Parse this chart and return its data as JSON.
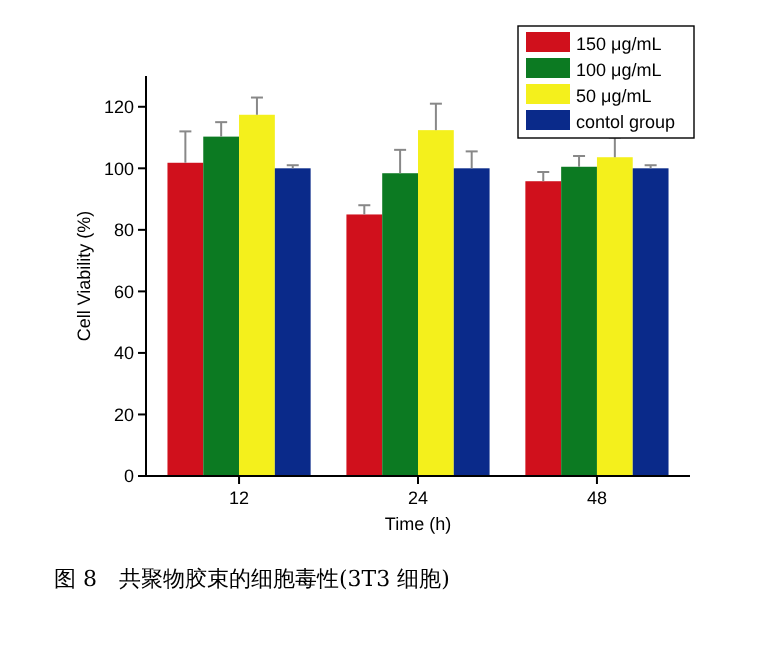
{
  "chart_data": {
    "type": "bar",
    "title": "图 8　共聚物胶束的细胞毒性(3T3 细胞)",
    "xlabel": "Time (h)",
    "ylabel": "Cell Viability (%)",
    "categories": [
      "12",
      "24",
      "48"
    ],
    "series": [
      {
        "name": "150 μg/mL",
        "color": "#d0101c",
        "values": [
          101.8,
          85,
          95.8
        ],
        "errors": [
          [
            101.8,
            112
          ],
          [
            85,
            88
          ],
          [
            95.8,
            98.8
          ]
        ]
      },
      {
        "name": "100 μg/mL",
        "color": "#0c7a22",
        "values": [
          110.3,
          98.4,
          100.5
        ],
        "errors": [
          [
            110.3,
            115
          ],
          [
            98.4,
            106
          ],
          [
            100.5,
            104
          ]
        ]
      },
      {
        "name": "50 μg/mL",
        "color": "#f4f01c",
        "values": [
          117.4,
          112.4,
          103.6
        ],
        "errors": [
          [
            117.4,
            123
          ],
          [
            112.4,
            121
          ],
          [
            103.6,
            110
          ]
        ]
      },
      {
        "name": "contol group",
        "color": "#0a2a8a",
        "values": [
          100,
          100,
          100
        ],
        "errors": [
          [
            100,
            101
          ],
          [
            100,
            105.5
          ],
          [
            100,
            101
          ]
        ]
      }
    ],
    "ylim": [
      0,
      130
    ],
    "yticks": [
      0,
      20,
      40,
      60,
      80,
      100,
      120
    ],
    "grid": false,
    "legend": "top right"
  }
}
